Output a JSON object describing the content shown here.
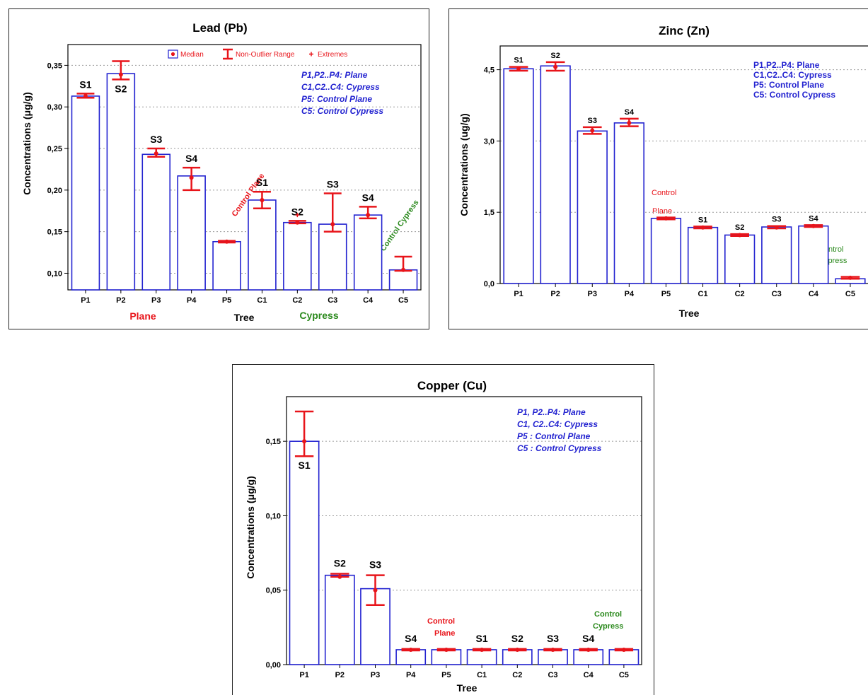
{
  "colors": {
    "bar": "#2323d0",
    "marker": "#e8141a",
    "note": "#2323d0",
    "plane": "#e8141a",
    "cypress": "#2c8a1e",
    "grid": "#9a9a9a"
  },
  "legend": {
    "median": "Median",
    "range": "Non-Outlier Range",
    "extremes": "Extremes"
  },
  "chart_data": [
    {
      "type": "bar",
      "title": "Lead (Pb)",
      "xlabel": "Tree",
      "ylabel": "Concentrations (μg/g)",
      "ylim": [
        0.08,
        0.375
      ],
      "yticks": [
        "0,10",
        "0,15",
        "0,20",
        "0,25",
        "0,30",
        "0,35"
      ],
      "categories": [
        "P1",
        "P2",
        "P3",
        "P4",
        "P5",
        "C1",
        "C2",
        "C3",
        "C4",
        "C5"
      ],
      "values": [
        0.313,
        0.34,
        0.243,
        0.217,
        0.138,
        0.188,
        0.161,
        0.159,
        0.17,
        0.104
      ],
      "medians": [
        0.313,
        0.339,
        0.244,
        0.215,
        0.138,
        0.188,
        0.161,
        0.159,
        0.17,
        0.104
      ],
      "ranges": [
        [
          0.311,
          0.316
        ],
        [
          0.333,
          0.355
        ],
        [
          0.24,
          0.25
        ],
        [
          0.2,
          0.227
        ],
        [
          0.137,
          0.139
        ],
        [
          0.178,
          0.198
        ],
        [
          0.16,
          0.163
        ],
        [
          0.15,
          0.196
        ],
        [
          0.166,
          0.18
        ],
        [
          0.103,
          0.12
        ]
      ],
      "extremes": [
        {
          "category": "C2",
          "value": 0.17
        }
      ],
      "sample_labels": [
        "S1",
        "S2",
        "S3",
        "S4",
        "",
        "S1",
        "S2",
        "S3",
        "S4",
        ""
      ],
      "notes": [
        "P1,P2..P4: Plane",
        "C1,C2..C4: Cypress",
        "P5: Control Plane",
        "C5: Control Cypress"
      ],
      "control_labels": {
        "plane": "Control Plane",
        "cypress": "Control Cypress"
      },
      "groups": {
        "plane": "Plane",
        "cypress": "Cypress"
      },
      "grid": true,
      "legend_position": "top"
    },
    {
      "type": "bar",
      "title": "Zinc (Zn)",
      "xlabel": "Tree",
      "ylabel": "Concentrations (ug/g)",
      "ylim": [
        0,
        5.0
      ],
      "yticks": [
        "0,0",
        "1,5",
        "3,0",
        "4,5"
      ],
      "categories": [
        "P1",
        "P2",
        "P3",
        "P4",
        "P5",
        "C1",
        "C2",
        "C3",
        "C4",
        "C5"
      ],
      "values": [
        4.52,
        4.58,
        3.21,
        3.38,
        1.37,
        1.18,
        1.02,
        1.19,
        1.21,
        0.1
      ],
      "medians": [
        4.52,
        4.56,
        3.22,
        3.38,
        1.37,
        1.18,
        1.02,
        1.18,
        1.21,
        0.12
      ],
      "ranges": [
        [
          4.48,
          4.56
        ],
        [
          4.48,
          4.66
        ],
        [
          3.15,
          3.29
        ],
        [
          3.31,
          3.47
        ],
        [
          1.35,
          1.39
        ],
        [
          1.16,
          1.2
        ],
        [
          1.0,
          1.04
        ],
        [
          1.16,
          1.21
        ],
        [
          1.19,
          1.23
        ],
        [
          0.1,
          0.14
        ]
      ],
      "sample_labels": [
        "S1",
        "S2",
        "S3",
        "S4",
        "",
        "S1",
        "S2",
        "S3",
        "S4",
        ""
      ],
      "notes": [
        "P1,P2..P4: Plane",
        "C1,C2..C4: Cypress",
        "P5: Control Plane",
        "C5: Control Cypress"
      ],
      "control_labels": {
        "plane_1": "Control",
        "plane_2": "Plane",
        "cypress_1": "Control",
        "cypress_2": "Cypress"
      },
      "grid": true
    },
    {
      "type": "bar",
      "title": "Copper (Cu)",
      "xlabel": "Tree",
      "ylabel": "Concentrations (μg/g)",
      "ylim": [
        0,
        0.18
      ],
      "yticks": [
        "0,00",
        "0,05",
        "0,10",
        "0,15"
      ],
      "categories": [
        "P1",
        "P2",
        "P3",
        "P4",
        "P5",
        "C1",
        "C2",
        "C3",
        "C4",
        "C5"
      ],
      "values": [
        0.15,
        0.06,
        0.051,
        0.01,
        0.01,
        0.01,
        0.01,
        0.01,
        0.01,
        0.01
      ],
      "medians": [
        0.15,
        0.059,
        0.05,
        0.01,
        0.01,
        0.01,
        0.01,
        0.01,
        0.01,
        0.01
      ],
      "ranges": [
        [
          0.14,
          0.17
        ],
        [
          0.059,
          0.061
        ],
        [
          0.04,
          0.06
        ],
        [
          0.0095,
          0.0105
        ],
        [
          0.0095,
          0.0105
        ],
        [
          0.0095,
          0.0105
        ],
        [
          0.0095,
          0.0105
        ],
        [
          0.0095,
          0.0105
        ],
        [
          0.0095,
          0.0105
        ],
        [
          0.0095,
          0.0105
        ]
      ],
      "sample_labels": [
        "S1",
        "S2",
        "S3",
        "S4",
        "",
        "S1",
        "S2",
        "S3",
        "S4",
        ""
      ],
      "notes": [
        "P1, P2..P4: Plane",
        "C1, C2..C4: Cypress",
        "P5 : Control Plane",
        "C5 : Control Cypress"
      ],
      "control_labels": {
        "plane_1": "Control",
        "plane_2": "Plane",
        "cypress_1": "Control",
        "cypress_2": "Cypress"
      },
      "grid": true
    }
  ]
}
